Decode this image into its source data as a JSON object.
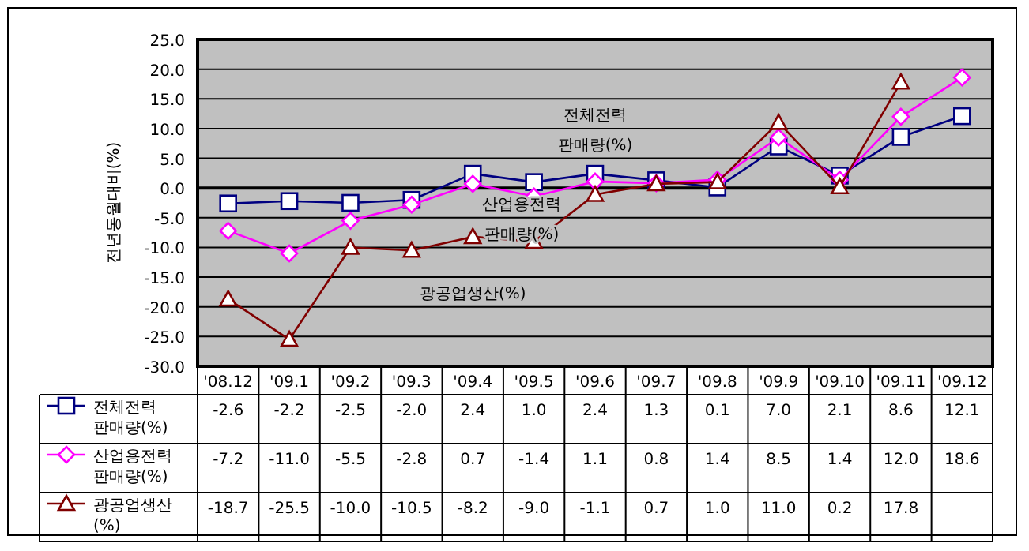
{
  "chart_data": {
    "type": "line",
    "ylabel": "전년동월대비(%)",
    "categories": [
      "'08.12",
      "'09.1",
      "'09.2",
      "'09.3",
      "'09.4",
      "'09.5",
      "'09.6",
      "'09.7",
      "'09.8",
      "'09.9",
      "'09.10",
      "'09.11",
      "'09.12"
    ],
    "series": [
      {
        "name": "전체전력\n판매량(%)",
        "color": "#000080",
        "marker": "square",
        "values": [
          -2.6,
          -2.2,
          -2.5,
          -2.0,
          2.4,
          1.0,
          2.4,
          1.3,
          0.1,
          7.0,
          2.1,
          8.6,
          12.1
        ],
        "value_labels": [
          "-2.6",
          "-2.2",
          "-2.5",
          "-2.0",
          "2.4",
          "1.0",
          "2.4",
          "1.3",
          "0.1",
          "7.0",
          "2.1",
          "8.6",
          "12.1"
        ]
      },
      {
        "name": "산업용전력\n판매량(%)",
        "color": "#ff00ff",
        "marker": "diamond",
        "values": [
          -7.2,
          -11.0,
          -5.5,
          -2.8,
          0.7,
          -1.4,
          1.1,
          0.8,
          1.4,
          8.5,
          1.4,
          12.0,
          18.6
        ],
        "value_labels": [
          "-7.2",
          "-11.0",
          "-5.5",
          "-2.8",
          "0.7",
          "-1.4",
          "1.1",
          "0.8",
          "1.4",
          "8.5",
          "1.4",
          "12.0",
          "18.6"
        ]
      },
      {
        "name": "광공업생산\n(%)",
        "color": "#800000",
        "marker": "triangle",
        "values": [
          -18.7,
          -25.5,
          -10.0,
          -10.5,
          -8.2,
          -9.0,
          -1.1,
          0.7,
          1.0,
          11.0,
          0.2,
          17.8,
          null
        ],
        "value_labels": [
          "-18.7",
          "-25.5",
          "-10.0",
          "-10.5",
          "-8.2",
          "-9.0",
          "-1.1",
          "0.7",
          "1.0",
          "11.0",
          "0.2",
          "17.8",
          null
        ]
      }
    ],
    "ylim": [
      -30,
      25
    ],
    "yticks": [
      {
        "value": 25,
        "label": "25.0"
      },
      {
        "value": 20,
        "label": "20.0"
      },
      {
        "value": 15,
        "label": "15.0"
      },
      {
        "value": 10,
        "label": "10.0"
      },
      {
        "value": 5,
        "label": "5.0"
      },
      {
        "value": 0,
        "label": "0.0"
      },
      {
        "value": -5,
        "label": "-5.0"
      },
      {
        "value": -10,
        "label": "-10.0"
      },
      {
        "value": -15,
        "label": "-15.0"
      },
      {
        "value": -20,
        "label": "-20.0"
      },
      {
        "value": -25,
        "label": "-25.0"
      },
      {
        "value": -30,
        "label": "-30.0"
      }
    ],
    "grid": "y",
    "legend": "bottom",
    "annotations": [
      "전체전력\n판매량(%)",
      "산업용전력\n판매량(%)",
      "광공업생산(%)"
    ]
  }
}
